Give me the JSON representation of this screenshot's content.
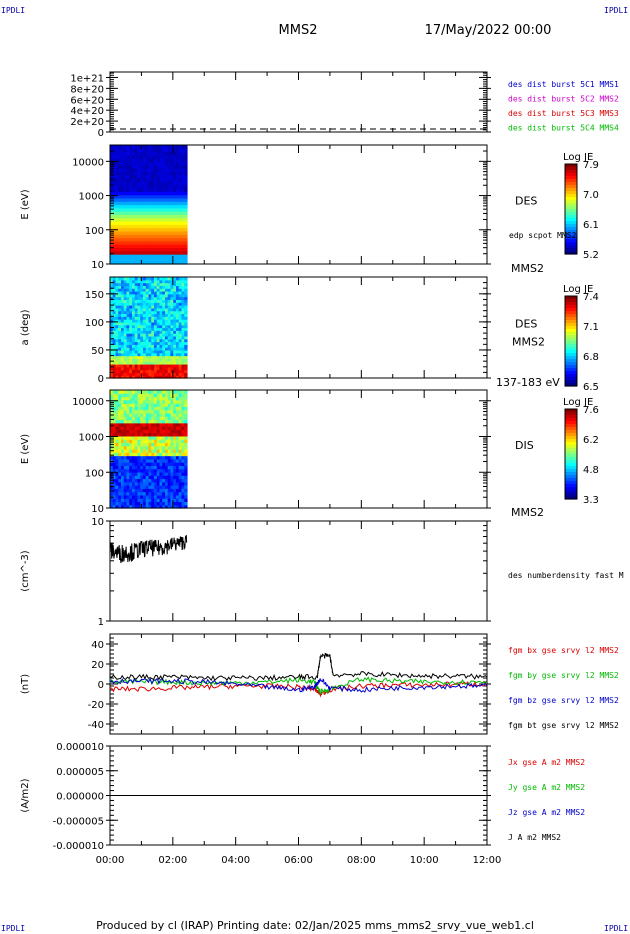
{
  "corners": {
    "tl": "IPDLI",
    "tr": "IPDLI",
    "bl": "IPDLI",
    "br": "IPDLI"
  },
  "header": {
    "spacecraft": "MMS2",
    "date": "17/May/2022 00:00"
  },
  "footer": "Produced by cl (IRAP)   Printing date: 02/Jan/2025   mms_mms2_srvy_vue_web1.cl",
  "colors": {
    "black": "#000000",
    "red": "#dd0000",
    "green": "#00bb00",
    "blue": "#0000cc",
    "magenta": "#cc00cc"
  },
  "chart_data": [
    {
      "type": "line",
      "ylim": [
        0,
        1.1e+21
      ],
      "yticks": [
        "0",
        "2e+20",
        "4e+20",
        "6e+20",
        "8e+20",
        "1e+21"
      ],
      "ytick_values": [
        0,
        2e+20,
        4e+20,
        6e+20,
        8e+20,
        1e+21
      ],
      "legend": [
        {
          "label": "des dist burst 5C1 MMS1",
          "color": "#0000cc"
        },
        {
          "label": "des dist burst 5C2 MMS2",
          "color": "#cc00cc"
        },
        {
          "label": "des dist burst 5C3 MMS3",
          "color": "#dd0000"
        },
        {
          "label": "des dist burst 5C4 MMS4",
          "color": "#00bb00"
        }
      ],
      "reference_line": 0
    },
    {
      "type": "heatmap",
      "ylabel": "E (eV)",
      "yscale": "log",
      "ylim": [
        10,
        30000
      ],
      "yticks": [
        "10",
        "100",
        "1000",
        "10000"
      ],
      "ytick_values": [
        10,
        100,
        1000,
        10000
      ],
      "data_end_hour": 2.45,
      "right_labels": [
        "DES",
        "edp scpot MMS2"
      ],
      "bottom_right": "MMS2",
      "colorbar": {
        "title": "Log JE",
        "ticks": [
          "7.9",
          "7.0",
          "6.1",
          "5.2"
        ]
      }
    },
    {
      "type": "heatmap",
      "ylabel": "a (deg)",
      "ylim": [
        0,
        180
      ],
      "yticks": [
        "0",
        "50",
        "100",
        "150"
      ],
      "ytick_values": [
        0,
        50,
        100,
        150
      ],
      "data_end_hour": 2.45,
      "right_labels": [
        "DES",
        "MMS2"
      ],
      "bottom_right": "137-183 eV",
      "colorbar": {
        "title": "Log JE",
        "ticks": [
          "7.4",
          "7.1",
          "6.8",
          "6.5"
        ]
      }
    },
    {
      "type": "heatmap",
      "ylabel": "E (eV)",
      "yscale": "log",
      "ylim": [
        10,
        20000
      ],
      "yticks": [
        "10",
        "100",
        "1000",
        "10000"
      ],
      "ytick_values": [
        10,
        100,
        1000,
        10000
      ],
      "data_end_hour": 2.45,
      "right_labels": [
        "DIS"
      ],
      "bottom_right": "MMS2",
      "colorbar": {
        "title": "Log JE",
        "ticks": [
          "7.6",
          "6.2",
          "4.8",
          "3.3"
        ]
      }
    },
    {
      "type": "line",
      "ylabel": "(cm^-3)",
      "yscale": "log",
      "ylim": [
        1,
        10
      ],
      "yticks": [
        "1",
        "10"
      ],
      "ytick_values": [
        1,
        10
      ],
      "series": [
        {
          "name": "des numberdensity fast M",
          "color": "#000000",
          "x": [
            0.0,
            0.25,
            0.5,
            0.75,
            1.0,
            1.25,
            1.5,
            1.75,
            2.0,
            2.25,
            2.45
          ],
          "y": [
            5.2,
            4.8,
            4.9,
            5.0,
            5.3,
            5.5,
            5.4,
            5.6,
            5.9,
            6.1,
            6.3
          ]
        }
      ]
    },
    {
      "type": "line",
      "ylabel": "(nT)",
      "ylim": [
        -50,
        50
      ],
      "yticks": [
        "-40",
        "-20",
        "0",
        "20",
        "40"
      ],
      "ytick_values": [
        -40,
        -20,
        0,
        20,
        40
      ],
      "series": [
        {
          "name": "fgm bx gse srvy l2 MMS2",
          "color": "#dd0000",
          "x": [
            0,
            1,
            2,
            3,
            4,
            5,
            6,
            6.5,
            6.7,
            7,
            8,
            9,
            10,
            11,
            12
          ],
          "y": [
            -5,
            -5,
            -4,
            -3,
            -2,
            -2,
            -3,
            -5,
            -10,
            -6,
            -2,
            -1,
            -1,
            0,
            0
          ]
        },
        {
          "name": "fgm by gse srvy l2 MMS2",
          "color": "#00bb00",
          "x": [
            0,
            1,
            2,
            3,
            4,
            5,
            6,
            6.5,
            6.7,
            7,
            8,
            9,
            10,
            11,
            12
          ],
          "y": [
            2,
            2,
            2,
            1,
            1,
            2,
            4,
            2,
            -8,
            -5,
            5,
            3,
            2,
            2,
            2
          ]
        },
        {
          "name": "fgm bz gse srvy l2 MMS2",
          "color": "#0000cc",
          "x": [
            0,
            1,
            2,
            3,
            4,
            5,
            6,
            6.5,
            6.7,
            7,
            8,
            9,
            10,
            11,
            12
          ],
          "y": [
            3,
            3,
            3,
            2,
            0,
            -3,
            -6,
            -3,
            5,
            -4,
            -6,
            -4,
            -3,
            -2,
            -2
          ]
        },
        {
          "name": "fgm bt gse srvy l2 MMS2",
          "color": "#000000",
          "x": [
            0,
            1,
            2,
            3,
            4,
            5,
            6,
            6.6,
            6.7,
            7.0,
            7.1,
            8,
            9,
            10,
            11,
            12
          ],
          "y": [
            7,
            7,
            7,
            6,
            6,
            6,
            7,
            7,
            28,
            28,
            9,
            10,
            9,
            8,
            8,
            7
          ]
        }
      ]
    },
    {
      "type": "line",
      "ylabel": "(A/m2)",
      "ylim": [
        -1e-05,
        1e-05
      ],
      "yticks": [
        "-0.000010",
        "-0.000005",
        "0.000000",
        "0.000005",
        "0.000010"
      ],
      "ytick_values": [
        -1e-05,
        -5e-06,
        0,
        5e-06,
        1e-05
      ],
      "series": [
        {
          "name": "Jx gse A m2 MMS2",
          "color": "#dd0000",
          "x": [],
          "y": []
        },
        {
          "name": "Jy gse A m2 MMS2",
          "color": "#00bb00",
          "x": [],
          "y": []
        },
        {
          "name": "Jz gse A m2 MMS2",
          "color": "#0000cc",
          "x": [],
          "y": []
        },
        {
          "name": "J A m2 MMS2",
          "color": "#000000",
          "x": [
            0,
            2,
            4,
            6,
            6.8,
            8,
            10,
            12
          ],
          "y": [
            0,
            0,
            0,
            0,
            0,
            0,
            0,
            0
          ]
        }
      ]
    }
  ],
  "xaxis": {
    "xlim": [
      0,
      12
    ],
    "ticks": [
      "00:00",
      "02:00",
      "04:00",
      "06:00",
      "08:00",
      "10:00",
      "12:00"
    ],
    "tick_values": [
      0,
      2,
      4,
      6,
      8,
      10,
      12
    ]
  }
}
